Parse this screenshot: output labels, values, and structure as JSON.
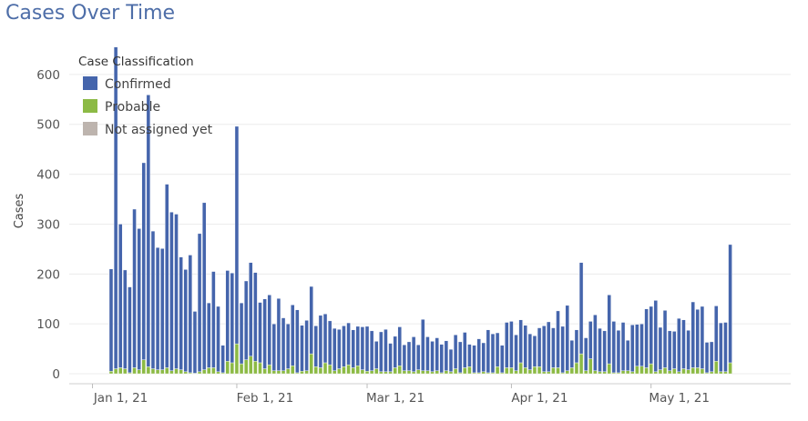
{
  "title": "Cases Over Time",
  "chart_data": {
    "type": "bar",
    "stacked": true,
    "title": "Cases Over Time",
    "xlabel": "",
    "ylabel": "Cases",
    "ylim": [
      -20,
      680
    ],
    "yticks": [
      0,
      100,
      200,
      300,
      400,
      500,
      600
    ],
    "xlim": [
      "2020-12-27",
      "2021-05-31"
    ],
    "xticks": [
      {
        "date": "2021-01-01",
        "label": "Jan 1, 21"
      },
      {
        "date": "2021-02-01",
        "label": "Feb 1, 21"
      },
      {
        "date": "2021-03-01",
        "label": "Mar 1, 21"
      },
      {
        "date": "2021-04-01",
        "label": "Apr 1, 21"
      },
      {
        "date": "2021-05-01",
        "label": "May 1, 21"
      }
    ],
    "grid": true,
    "legend": {
      "title": "Case Classification",
      "position": "top-left"
    },
    "start_date": "2021-01-05",
    "series": [
      {
        "name": "Confirmed",
        "color": "#4565ac",
        "values": [
          205,
          645,
          288,
          198,
          172,
          318,
          283,
          395,
          545,
          276,
          245,
          243,
          368,
          318,
          310,
          226,
          205,
          236,
          124,
          277,
          335,
          130,
          193,
          131,
          55,
          182,
          180,
          436,
          122,
          158,
          188,
          178,
          121,
          140,
          140,
          94,
          145,
          106,
          90,
          122,
          126,
          92,
          101,
          135,
          82,
          105,
          98,
          88,
          85,
          79,
          82,
          84,
          76,
          79,
          86,
          90,
          80,
          55,
          80,
          85,
          57,
          63,
          78,
          52,
          58,
          70,
          50,
          103,
          68,
          61,
          66,
          57,
          60,
          45,
          68,
          62,
          71,
          45,
          55,
          68,
          58,
          86,
          78,
          68,
          55,
          91,
          93,
          72,
          86,
          85,
          72,
          62,
          78,
          92,
          100,
          80,
          114,
          93,
          131,
          55,
          66,
          183,
          66,
          75,
          112,
          87,
          82,
          138,
          103,
          85,
          97,
          61,
          94,
          84,
          85,
          118,
          115,
          143,
          85,
          115,
          80,
          75,
          107,
          98,
          79,
          132,
          117,
          125,
          61,
          60,
          111,
          98,
          99,
          237
        ]
      },
      {
        "name": "Probable",
        "color": "#8cba45",
        "values": [
          5,
          10,
          12,
          10,
          2,
          12,
          8,
          28,
          14,
          10,
          8,
          8,
          12,
          6,
          10,
          8,
          4,
          2,
          1,
          4,
          8,
          12,
          12,
          4,
          2,
          25,
          22,
          60,
          20,
          28,
          35,
          25,
          22,
          10,
          18,
          6,
          6,
          6,
          10,
          16,
          2,
          5,
          6,
          40,
          14,
          12,
          22,
          18,
          6,
          10,
          14,
          18,
          12,
          16,
          8,
          5,
          6,
          10,
          4,
          4,
          4,
          12,
          16,
          6,
          6,
          4,
          8,
          6,
          6,
          4,
          6,
          2,
          6,
          4,
          10,
          2,
          12,
          14,
          2,
          2,
          4,
          2,
          2,
          14,
          2,
          12,
          12,
          6,
          22,
          12,
          8,
          14,
          14,
          4,
          4,
          12,
          12,
          2,
          6,
          12,
          22,
          40,
          6,
          30,
          6,
          4,
          4,
          20,
          2,
          2,
          6,
          6,
          4,
          15,
          15,
          12,
          20,
          4,
          8,
          12,
          6,
          10,
          4,
          10,
          8,
          12,
          12,
          10,
          2,
          4,
          25,
          4,
          4,
          22
        ]
      },
      {
        "name": "Not assigned yet",
        "color": "#bdb4ae",
        "values": [
          0,
          0,
          0,
          0,
          0,
          0,
          0,
          0,
          0,
          0,
          0,
          0,
          0,
          0,
          0,
          0,
          0,
          0,
          0,
          0,
          0,
          0,
          0,
          0,
          0,
          0,
          0,
          0,
          0,
          0,
          0,
          0,
          0,
          0,
          0,
          0,
          0,
          0,
          0,
          0,
          0,
          0,
          0,
          0,
          0,
          0,
          0,
          0,
          0,
          0,
          0,
          0,
          0,
          0,
          0,
          0,
          0,
          0,
          0,
          0,
          0,
          0,
          0,
          0,
          0,
          0,
          0,
          0,
          0,
          0,
          0,
          0,
          0,
          0,
          0,
          0,
          0,
          0,
          0,
          0,
          0,
          0,
          0,
          0,
          0,
          0,
          0,
          0,
          0,
          0,
          0,
          0,
          0,
          0,
          0,
          0,
          0,
          0,
          0,
          0,
          0,
          0,
          0,
          0,
          0,
          0,
          0,
          0,
          0,
          0,
          0,
          0,
          0,
          0,
          0,
          0,
          0,
          0,
          0,
          0,
          0,
          0,
          0,
          0,
          0,
          0,
          0,
          0,
          0,
          0,
          0,
          0,
          0,
          0
        ]
      }
    ]
  }
}
